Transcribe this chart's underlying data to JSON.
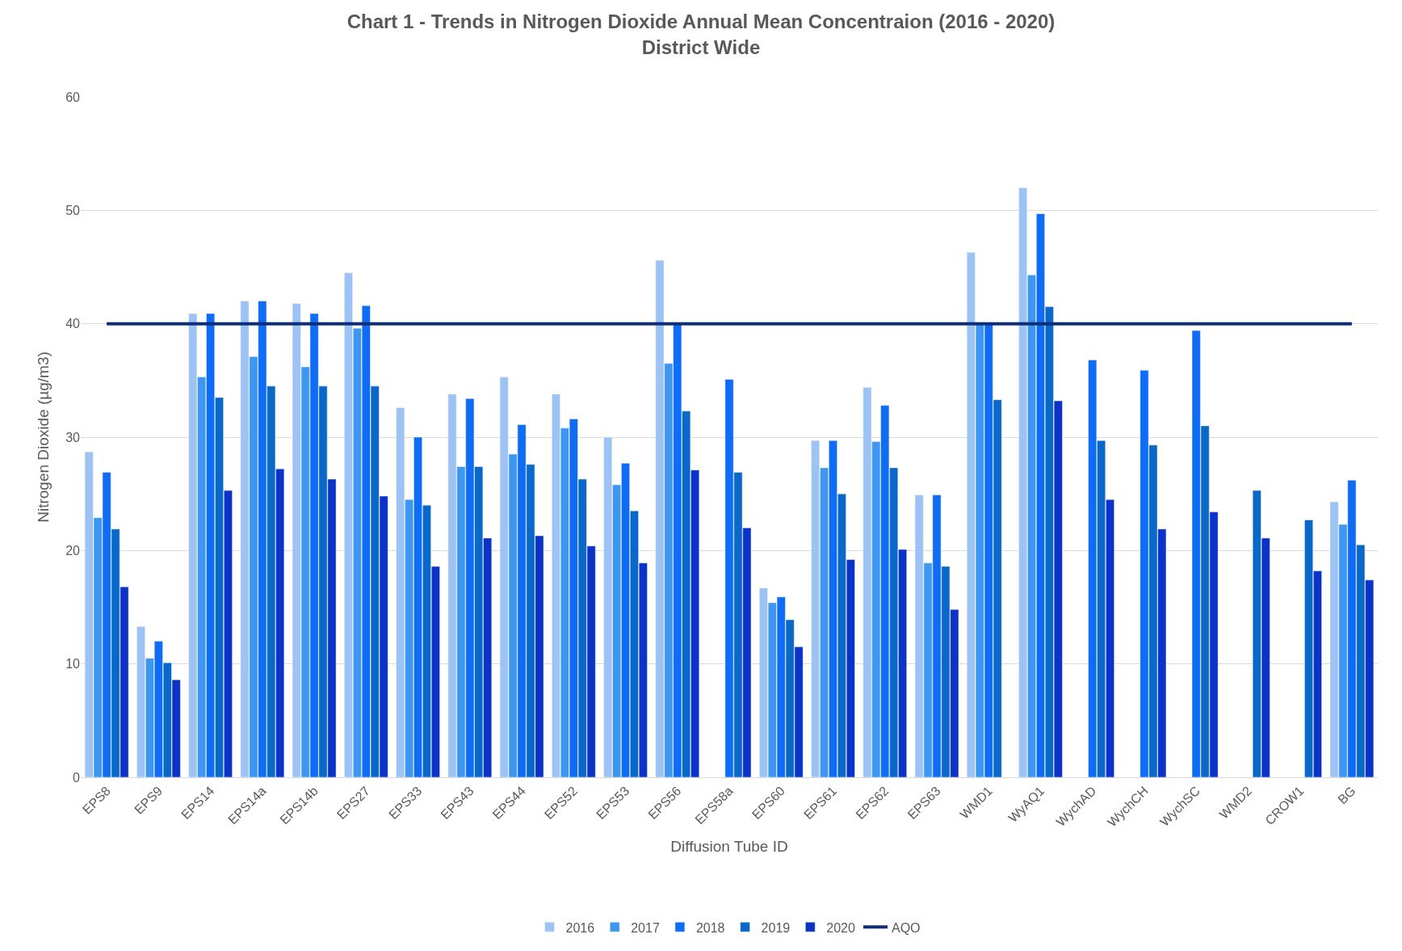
{
  "chart_data": {
    "type": "bar",
    "title": "Chart 1 - Trends in Nitrogen Dioxide Annual Mean Concentraion (2016 - 2020)",
    "subtitle": "District Wide",
    "xlabel": "Diffusion Tube ID",
    "ylabel": "Nitrogen Dioxide (µg/m3)",
    "categories": [
      "EPS8",
      "EPS9",
      "EPS14",
      "EPS14a",
      "EPS14b",
      "EPS27",
      "EPS33",
      "EPS43",
      "EPS44",
      "EPS52",
      "EPS53",
      "EPS56",
      "EPS58a",
      "EPS60",
      "EPS61",
      "EPS62",
      "EPS63",
      "WMD1",
      "WyAQ1",
      "WychAD",
      "WychCH",
      "WychSC",
      "WMD2",
      "CROW1",
      "BG"
    ],
    "series": [
      {
        "name": "2016",
        "color": "#9dc3f5",
        "values": [
          28.7,
          13.3,
          40.9,
          42.0,
          41.8,
          44.5,
          32.6,
          33.8,
          35.3,
          33.8,
          30.0,
          45.6,
          null,
          16.7,
          29.7,
          34.4,
          24.9,
          46.3,
          52.0,
          null,
          null,
          null,
          null,
          null,
          24.3
        ]
      },
      {
        "name": "2017",
        "color": "#3d97f0",
        "values": [
          22.9,
          10.5,
          35.3,
          37.1,
          36.2,
          39.6,
          24.5,
          27.4,
          28.5,
          30.8,
          25.8,
          36.5,
          null,
          15.4,
          27.3,
          29.6,
          18.9,
          40.0,
          44.3,
          null,
          null,
          null,
          null,
          null,
          22.3
        ]
      },
      {
        "name": "2018",
        "color": "#0f6cf5",
        "values": [
          26.9,
          12.0,
          40.9,
          42.0,
          40.9,
          41.6,
          30.0,
          33.4,
          31.1,
          31.6,
          27.7,
          40.0,
          35.1,
          15.9,
          29.7,
          32.8,
          24.9,
          40.0,
          49.7,
          36.8,
          35.9,
          39.4,
          null,
          null,
          26.2
        ]
      },
      {
        "name": "2019",
        "color": "#0a68c9",
        "values": [
          21.9,
          10.1,
          33.5,
          34.5,
          34.5,
          34.5,
          24.0,
          27.4,
          27.6,
          26.3,
          23.5,
          32.3,
          26.9,
          13.9,
          25.0,
          27.3,
          18.6,
          33.3,
          41.5,
          29.7,
          29.3,
          31.0,
          25.3,
          22.7,
          20.5
        ]
      },
      {
        "name": "2020",
        "color": "#0b33c7",
        "values": [
          16.8,
          8.6,
          25.3,
          27.2,
          26.3,
          24.8,
          18.6,
          21.1,
          21.3,
          20.4,
          18.9,
          27.1,
          22.0,
          11.5,
          19.2,
          20.1,
          14.8,
          null,
          33.2,
          24.5,
          21.9,
          23.4,
          21.1,
          18.2,
          17.4
        ]
      },
      {
        "name": "AQO",
        "type": "line",
        "color": "#0d2f7a",
        "values": [
          40,
          40,
          40,
          40,
          40,
          40,
          40,
          40,
          40,
          40,
          40,
          40,
          40,
          40,
          40,
          40,
          40,
          40,
          40,
          40,
          40,
          40,
          40,
          40,
          40
        ]
      }
    ],
    "ylim": [
      0,
      60
    ],
    "yticks": [
      0,
      10,
      20,
      30,
      40,
      50,
      60
    ],
    "grid": "y",
    "legend": "bottom"
  }
}
